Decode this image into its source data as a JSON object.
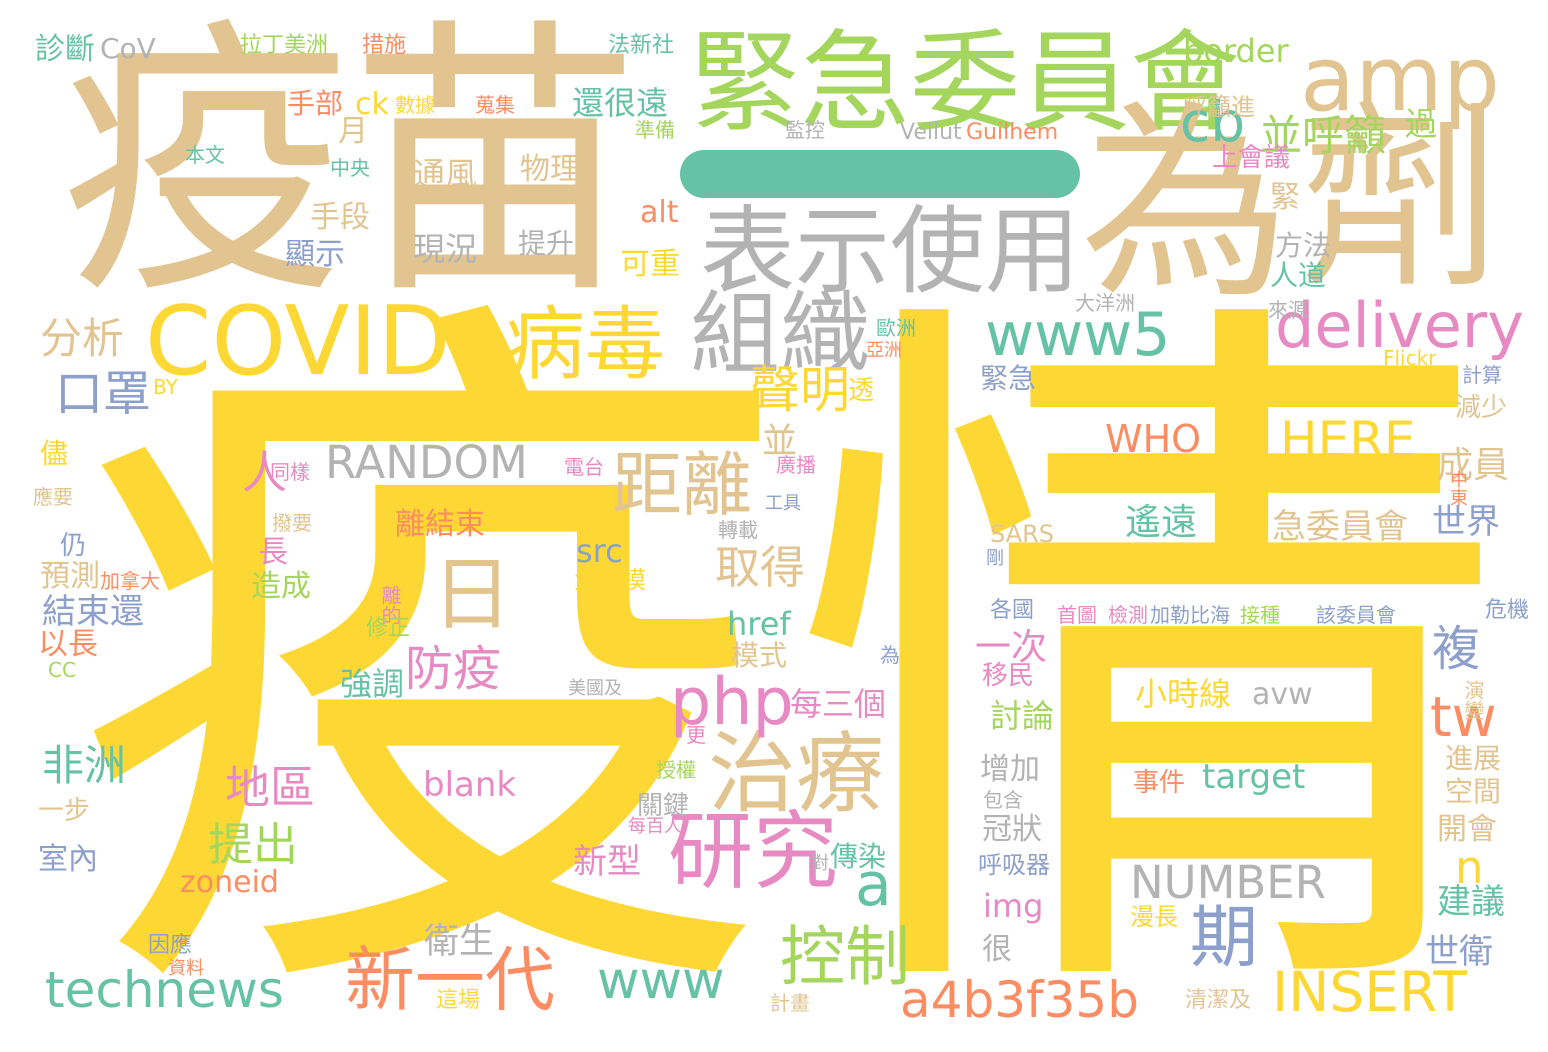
{
  "title": "",
  "colors": {
    "yellow": "#fdd835",
    "tan": "#e2c490",
    "gray": "#b3b3b3",
    "green": "#a4d65e",
    "teal": "#66c2a5",
    "salmon": "#fc8d62",
    "pink": "#e78ac3",
    "blue": "#8da0cb",
    "lime": "#a6d854",
    "beige": "#e5c494"
  },
  "words": [
    {
      "text": "疫情",
      "color": "#fdd835"
    },
    {
      "text": "疫苗",
      "color": "#e2c490"
    },
    {
      "text": "一",
      "color": "#66c2a5"
    },
    {
      "text": "緊急委員會",
      "color": "#a4d65e"
    },
    {
      "text": "為",
      "color": "#e2c490"
    },
    {
      "text": "劑",
      "color": "#e2c490"
    },
    {
      "text": "amp",
      "color": "#e2c490"
    },
    {
      "text": "表示使用",
      "color": "#b3b3b3"
    },
    {
      "text": "COVID",
      "color": "#fdd835"
    },
    {
      "text": "病毒",
      "color": "#fdd835"
    },
    {
      "text": "組織",
      "color": "#b3b3b3"
    },
    {
      "text": "www5",
      "color": "#66c2a5"
    },
    {
      "text": "delivery",
      "color": "#e78ac3"
    },
    {
      "text": "cb",
      "color": "#66c2a5"
    },
    {
      "text": "並呼籲",
      "color": "#a4d65e"
    },
    {
      "text": "RANDOM",
      "color": "#b3b3b3"
    },
    {
      "text": "HERE",
      "color": "#fdd835"
    },
    {
      "text": "WHO",
      "color": "#fc8d62"
    },
    {
      "text": "距離",
      "color": "#e2c490"
    },
    {
      "text": "日",
      "color": "#e2c490"
    },
    {
      "text": "人",
      "color": "#e78ac3"
    },
    {
      "text": "聲明",
      "color": "#fdd835"
    },
    {
      "text": "口罩",
      "color": "#8da0cb"
    },
    {
      "text": "分析",
      "color": "#e2c490"
    },
    {
      "text": "治療",
      "color": "#e2c490"
    },
    {
      "text": "研究",
      "color": "#e78ac3"
    },
    {
      "text": "php",
      "color": "#e78ac3"
    },
    {
      "text": "防疫",
      "color": "#e78ac3"
    },
    {
      "text": "a",
      "color": "#66c2a5"
    },
    {
      "text": "期",
      "color": "#8da0cb"
    },
    {
      "text": "控制",
      "color": "#a4d65e"
    },
    {
      "text": "新一代",
      "color": "#fc8d62"
    },
    {
      "text": "technews",
      "color": "#66c2a5"
    },
    {
      "text": "www",
      "color": "#66c2a5"
    },
    {
      "text": "a4b3f35b",
      "color": "#fc8d62"
    },
    {
      "text": "INSERT",
      "color": "#fdd835"
    },
    {
      "text": "NUMBER",
      "color": "#b3b3b3"
    },
    {
      "text": "tw",
      "color": "#fc8d62"
    },
    {
      "text": "n",
      "color": "#fdd835"
    },
    {
      "text": "複",
      "color": "#8da0cb"
    },
    {
      "text": "取得",
      "color": "#e2c490"
    },
    {
      "text": "地區",
      "color": "#e78ac3"
    },
    {
      "text": "提出",
      "color": "#a4d65e"
    },
    {
      "text": "非洲",
      "color": "#66c2a5"
    },
    {
      "text": "結束還",
      "color": "#8da0cb"
    },
    {
      "text": "border",
      "color": "#a4d65e"
    },
    {
      "text": "還很遠",
      "color": "#66c2a5"
    },
    {
      "text": "alt",
      "color": "#fc8d62"
    },
    {
      "text": "href",
      "color": "#66c2a5"
    },
    {
      "text": "src",
      "color": "#8da0cb"
    },
    {
      "text": "blank",
      "color": "#e78ac3"
    },
    {
      "text": "target",
      "color": "#66c2a5"
    },
    {
      "text": "avw",
      "color": "#b3b3b3"
    },
    {
      "text": "小時線",
      "color": "#fdd835"
    },
    {
      "text": "zoneid",
      "color": "#fc8d62"
    },
    {
      "text": "img",
      "color": "#e78ac3"
    },
    {
      "text": "遙遠",
      "color": "#66c2a5"
    },
    {
      "text": "急委員會",
      "color": "#e2c490"
    },
    {
      "text": "成員",
      "color": "#e2c490"
    },
    {
      "text": "世界",
      "color": "#8da0cb"
    },
    {
      "text": "世衛",
      "color": "#8da0cb"
    },
    {
      "text": "建議",
      "color": "#66c2a5"
    },
    {
      "text": "開會",
      "color": "#e2c490"
    },
    {
      "text": "空間",
      "color": "#e2c490"
    },
    {
      "text": "進展",
      "color": "#e2c490"
    },
    {
      "text": "演變",
      "color": "#e2c490"
    },
    {
      "text": "危機",
      "color": "#8da0cb"
    },
    {
      "text": "減少",
      "color": "#e2c490"
    },
    {
      "text": "計算",
      "color": "#8da0cb"
    },
    {
      "text": "中東",
      "color": "#fc8d62"
    },
    {
      "text": "檢測",
      "color": "#e78ac3"
    },
    {
      "text": "加勒比海",
      "color": "#8da0cb"
    },
    {
      "text": "接種",
      "color": "#a4d65e"
    },
    {
      "text": "該委員會",
      "color": "#8da0cb"
    },
    {
      "text": "首圖",
      "color": "#e78ac3"
    },
    {
      "text": "各國",
      "color": "#8da0cb"
    },
    {
      "text": "剛",
      "color": "#8da0cb"
    },
    {
      "text": "SARS",
      "color": "#e2c490"
    },
    {
      "text": "一次",
      "color": "#e78ac3"
    },
    {
      "text": "移民",
      "color": "#e78ac3"
    },
    {
      "text": "討論",
      "color": "#a4d65e"
    },
    {
      "text": "增加",
      "color": "#b3b3b3"
    },
    {
      "text": "包含",
      "color": "#b3b3b3"
    },
    {
      "text": "事件",
      "color": "#fc8d62"
    },
    {
      "text": "冠狀",
      "color": "#b3b3b3"
    },
    {
      "text": "呼吸器",
      "color": "#8da0cb"
    },
    {
      "text": "漫長",
      "color": "#fdd835"
    },
    {
      "text": "清潔及",
      "color": "#e2c490"
    },
    {
      "text": "緊急",
      "color": "#8da0cb"
    },
    {
      "text": "Flickr",
      "color": "#fdd835"
    },
    {
      "text": "大洋洲",
      "color": "#b3b3b3"
    },
    {
      "text": "來源",
      "color": "#b3b3b3"
    },
    {
      "text": "歐洲",
      "color": "#66c2a5"
    },
    {
      "text": "亞洲",
      "color": "#fc8d62"
    },
    {
      "text": "人道",
      "color": "#66c2a5"
    },
    {
      "text": "方法",
      "color": "#b3b3b3"
    },
    {
      "text": "緊",
      "color": "#e2c490"
    },
    {
      "text": "上會議",
      "color": "#e78ac3"
    },
    {
      "text": "過",
      "color": "#a4d65e"
    },
    {
      "text": "呼籲進",
      "color": "#e2c490"
    },
    {
      "text": "Guilhem",
      "color": "#fc8d62"
    },
    {
      "text": "Vellut",
      "color": "#b3b3b3"
    },
    {
      "text": "監控",
      "color": "#b3b3b3"
    },
    {
      "text": "準備",
      "color": "#a4d65e"
    },
    {
      "text": "蒐集",
      "color": "#fc8d62"
    },
    {
      "text": "數據",
      "color": "#fdd835"
    },
    {
      "text": "ck",
      "color": "#fdd835"
    },
    {
      "text": "手部",
      "color": "#fc8d62"
    },
    {
      "text": "月",
      "color": "#e2c490"
    },
    {
      "text": "中央",
      "color": "#66c2a5"
    },
    {
      "text": "手段",
      "color": "#e2c490"
    },
    {
      "text": "顯示",
      "color": "#8da0cb"
    },
    {
      "text": "通風",
      "color": "#e2c490"
    },
    {
      "text": "物理",
      "color": "#e2c490"
    },
    {
      "text": "現況",
      "color": "#b3b3b3"
    },
    {
      "text": "提升",
      "color": "#b3b3b3"
    },
    {
      "text": "可重",
      "color": "#fdd835"
    },
    {
      "text": "本文",
      "color": "#66c2a5"
    },
    {
      "text": "診斷",
      "color": "#66c2a5"
    },
    {
      "text": "CoV",
      "color": "#b3b3b3"
    },
    {
      "text": "拉丁美洲",
      "color": "#a4d65e"
    },
    {
      "text": "措施",
      "color": "#fc8d62"
    },
    {
      "text": "法新社",
      "color": "#66c2a5"
    },
    {
      "text": "BY",
      "color": "#fdd835"
    },
    {
      "text": "透",
      "color": "#fdd835"
    },
    {
      "text": "儘",
      "color": "#fdd835"
    },
    {
      "text": "應要",
      "color": "#e2c490"
    },
    {
      "text": "同樣",
      "color": "#e78ac3"
    },
    {
      "text": "電台",
      "color": "#e78ac3"
    },
    {
      "text": "廣播",
      "color": "#e78ac3"
    },
    {
      "text": "工具",
      "color": "#8da0cb"
    },
    {
      "text": "轉載",
      "color": "#b3b3b3"
    },
    {
      "text": "撥要",
      "color": "#e2c490"
    },
    {
      "text": "離結束",
      "color": "#fc8d62"
    },
    {
      "text": "並",
      "color": "#e2c490"
    },
    {
      "text": "長",
      "color": "#e78ac3"
    },
    {
      "text": "造成",
      "color": "#a4d65e"
    },
    {
      "text": "仍",
      "color": "#8da0cb"
    },
    {
      "text": "預測",
      "color": "#e2c490"
    },
    {
      "text": "加拿大",
      "color": "#fc8d62"
    },
    {
      "text": "大規模",
      "color": "#fdd835"
    },
    {
      "text": "離的",
      "color": "#e78ac3"
    },
    {
      "text": "修正",
      "color": "#a4d65e"
    },
    {
      "text": "以長",
      "color": "#fc8d62"
    },
    {
      "text": "CC",
      "color": "#a4d65e"
    },
    {
      "text": "模式",
      "color": "#e2c490"
    },
    {
      "text": "為",
      "color": "#8da0cb"
    },
    {
      "text": "強調",
      "color": "#66c2a5"
    },
    {
      "text": "美國及",
      "color": "#b3b3b3"
    },
    {
      "text": "每三個",
      "color": "#e78ac3"
    },
    {
      "text": "更",
      "color": "#e78ac3"
    },
    {
      "text": "授權",
      "color": "#a4d65e"
    },
    {
      "text": "關鍵",
      "color": "#b3b3b3"
    },
    {
      "text": "一步",
      "color": "#e2c490"
    },
    {
      "text": "室內",
      "color": "#8da0cb"
    },
    {
      "text": "每百人",
      "color": "#e78ac3"
    },
    {
      "text": "新型",
      "color": "#e78ac3"
    },
    {
      "text": "傳染",
      "color": "#66c2a5"
    },
    {
      "text": "對",
      "color": "#b3b3b3"
    },
    {
      "text": "衛生",
      "color": "#b3b3b3"
    },
    {
      "text": "很",
      "color": "#b3b3b3"
    },
    {
      "text": "因應",
      "color": "#8da0cb"
    },
    {
      "text": "資料",
      "color": "#fc8d62"
    },
    {
      "text": "這場",
      "color": "#fdd835"
    },
    {
      "text": "計畫",
      "color": "#e2c490"
    }
  ]
}
